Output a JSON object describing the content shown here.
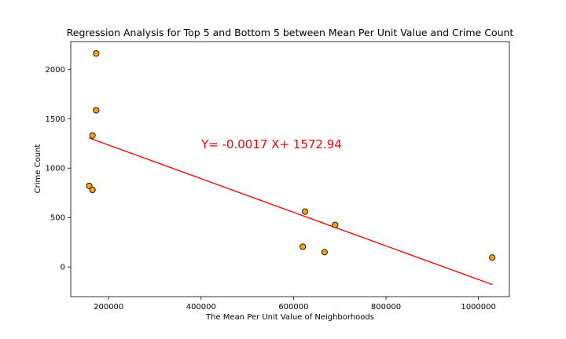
{
  "chart_data": {
    "type": "scatter",
    "title": "Regression Analysis for Top 5 and Bottom 5 between Mean Per Unit Value and Crime Count",
    "xlabel": "The Mean Per Unit Value of Neighborhoods",
    "ylabel": "Crime Count",
    "xlim": [
      118000,
      1067000
    ],
    "ylim": [
      -300,
      2280
    ],
    "xticks": [
      200000,
      400000,
      600000,
      800000,
      1000000
    ],
    "yticks": [
      0,
      500,
      1000,
      1500,
      2000
    ],
    "grid": false,
    "points": [
      {
        "x": 173000,
        "y": 2160
      },
      {
        "x": 173000,
        "y": 1585
      },
      {
        "x": 165000,
        "y": 1330
      },
      {
        "x": 158000,
        "y": 820
      },
      {
        "x": 165000,
        "y": 780
      },
      {
        "x": 625000,
        "y": 560
      },
      {
        "x": 690000,
        "y": 425
      },
      {
        "x": 620000,
        "y": 205
      },
      {
        "x": 667000,
        "y": 150
      },
      {
        "x": 1030000,
        "y": 95
      }
    ],
    "regression": {
      "slope": -0.0017,
      "intercept": 1572.94,
      "x_start": 158000,
      "x_end": 1030000,
      "equation_label": "Y= -0.0017 X+ 1572.94"
    },
    "colors": {
      "marker_fill": "#ffa500",
      "marker_edge": "#000000",
      "line": "#ff0000",
      "annotation": "#ff0000"
    }
  }
}
